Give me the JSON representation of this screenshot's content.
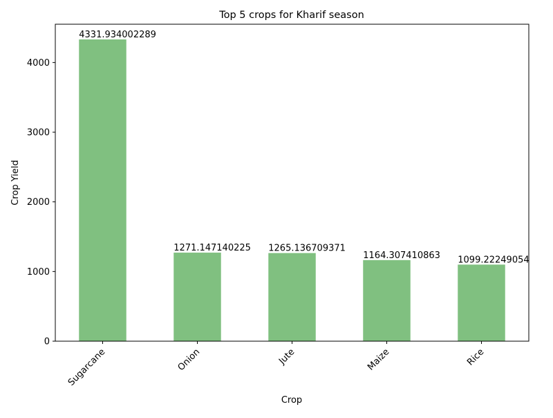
{
  "chart_data": {
    "type": "bar",
    "title": "Top 5 crops for Kharif season",
    "xlabel": "Crop",
    "ylabel": "Crop Yield",
    "categories": [
      "Sugarcane",
      "Onion",
      "Jute",
      "Maize",
      "Rice"
    ],
    "values": [
      4331.934002289,
      1271.147140225,
      1265.136709371,
      1164.307410863,
      1099.22249054
    ],
    "value_labels": [
      "4331.934002289",
      "1271.147140225",
      "1265.136709371",
      "1164.307410863",
      "1099.22249054"
    ],
    "ylim": [
      0,
      4550
    ],
    "yticks": [
      0,
      1000,
      2000,
      3000,
      4000
    ],
    "ytick_labels": [
      "0",
      "1000",
      "2000",
      "3000",
      "4000"
    ],
    "grid": false,
    "legend": "none",
    "colors": {
      "bar": "#80c080",
      "axis": "#000000"
    }
  }
}
